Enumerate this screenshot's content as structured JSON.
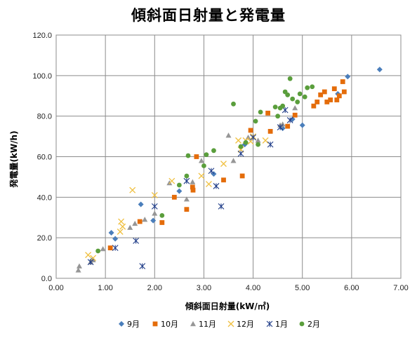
{
  "chart_data": {
    "type": "scatter",
    "title": "傾斜面日射量と発電量",
    "xlabel": "傾斜面日射量(kW/㎡)",
    "ylabel": "発電量(kW/h)",
    "xlim": [
      0,
      7
    ],
    "ylim": [
      0,
      120
    ],
    "xticks": [
      "0.00",
      "1.00",
      "2.00",
      "3.00",
      "4.00",
      "5.00",
      "6.00",
      "7.00"
    ],
    "yticks": [
      "0.0",
      "20.0",
      "40.0",
      "60.0",
      "80.0",
      "100.0",
      "120.0"
    ],
    "grid": true,
    "legend_position": "bottom",
    "series": [
      {
        "name": "9月",
        "marker": "diamond",
        "color": "#4a7ebb",
        "points": [
          [
            0.73,
            9
          ],
          [
            1.12,
            22.5
          ],
          [
            1.2,
            19.5
          ],
          [
            1.72,
            36.5
          ],
          [
            1.97,
            28.5
          ],
          [
            2.5,
            43
          ],
          [
            3.2,
            51.5
          ],
          [
            3.83,
            66
          ],
          [
            4.6,
            74
          ],
          [
            4.8,
            78.5
          ],
          [
            5.0,
            75.5
          ],
          [
            5.72,
            91
          ],
          [
            5.92,
            99.5
          ],
          [
            6.57,
            103
          ]
        ]
      },
      {
        "name": "10月",
        "marker": "square",
        "color": "#e46c0a",
        "points": [
          [
            1.1,
            15
          ],
          [
            1.7,
            28
          ],
          [
            2.15,
            27.5
          ],
          [
            2.4,
            40
          ],
          [
            2.65,
            34
          ],
          [
            2.77,
            45
          ],
          [
            2.78,
            43.5
          ],
          [
            2.85,
            60
          ],
          [
            3.4,
            48.5
          ],
          [
            3.78,
            50.5
          ],
          [
            3.95,
            73
          ],
          [
            4.3,
            81.5
          ],
          [
            4.35,
            72.5
          ],
          [
            4.7,
            75
          ],
          [
            4.85,
            80.5
          ],
          [
            5.23,
            85
          ],
          [
            5.3,
            87
          ],
          [
            5.37,
            90.5
          ],
          [
            5.45,
            92
          ],
          [
            5.5,
            87
          ],
          [
            5.57,
            88
          ],
          [
            5.65,
            93.5
          ],
          [
            5.7,
            88
          ],
          [
            5.75,
            90
          ],
          [
            5.82,
            97
          ],
          [
            5.85,
            92
          ]
        ]
      },
      {
        "name": "11月",
        "marker": "triangle",
        "color": "#969696",
        "points": [
          [
            0.45,
            4
          ],
          [
            0.47,
            6
          ],
          [
            0.7,
            8
          ],
          [
            0.75,
            9
          ],
          [
            0.95,
            14.5
          ],
          [
            1.5,
            25
          ],
          [
            1.6,
            27
          ],
          [
            1.8,
            29
          ],
          [
            2.0,
            32
          ],
          [
            2.3,
            47
          ],
          [
            2.65,
            39
          ],
          [
            2.77,
            47.5
          ],
          [
            2.95,
            58
          ],
          [
            3.5,
            70.5
          ],
          [
            3.6,
            58
          ],
          [
            3.9,
            69.5
          ],
          [
            4.1,
            68
          ],
          [
            4.55,
            75.5
          ],
          [
            4.6,
            76
          ],
          [
            4.85,
            84
          ]
        ]
      },
      {
        "name": "12月",
        "marker": "x",
        "color": "#f0c040",
        "points": [
          [
            0.65,
            11.5
          ],
          [
            0.75,
            10
          ],
          [
            1.3,
            23
          ],
          [
            1.32,
            28
          ],
          [
            1.35,
            25.5
          ],
          [
            1.55,
            43.5
          ],
          [
            2.0,
            41
          ],
          [
            2.35,
            48
          ],
          [
            2.95,
            50.5
          ],
          [
            3.1,
            46.5
          ],
          [
            3.4,
            56.5
          ],
          [
            3.7,
            68
          ],
          [
            3.75,
            63.5
          ],
          [
            3.85,
            68
          ],
          [
            3.95,
            67.5
          ],
          [
            4.0,
            70
          ],
          [
            4.25,
            68
          ]
        ]
      },
      {
        "name": "1月",
        "marker": "asterisk",
        "color": "#1f3c88",
        "points": [
          [
            0.7,
            8
          ],
          [
            1.2,
            15
          ],
          [
            1.62,
            18.5
          ],
          [
            1.75,
            6
          ],
          [
            2.0,
            35.5
          ],
          [
            2.65,
            48
          ],
          [
            3.15,
            53
          ],
          [
            3.25,
            45.5
          ],
          [
            3.35,
            35.5
          ],
          [
            3.75,
            61.5
          ],
          [
            4.0,
            69.5
          ],
          [
            4.35,
            66
          ],
          [
            4.55,
            74.5
          ],
          [
            4.65,
            83
          ],
          [
            4.75,
            78
          ]
        ]
      },
      {
        "name": "2月",
        "marker": "circle",
        "color": "#5a9e3c",
        "points": [
          [
            0.85,
            13.5
          ],
          [
            2.15,
            31
          ],
          [
            2.5,
            46
          ],
          [
            2.65,
            50.5
          ],
          [
            2.68,
            60.5
          ],
          [
            3.0,
            55.5
          ],
          [
            3.05,
            61
          ],
          [
            3.2,
            63
          ],
          [
            3.6,
            86
          ],
          [
            3.75,
            65
          ],
          [
            3.85,
            67
          ],
          [
            4.05,
            77.5
          ],
          [
            4.1,
            66
          ],
          [
            4.15,
            82
          ],
          [
            4.45,
            84.5
          ],
          [
            4.5,
            80
          ],
          [
            4.55,
            84
          ],
          [
            4.6,
            85
          ],
          [
            4.65,
            92
          ],
          [
            4.7,
            90.5
          ],
          [
            4.75,
            98.5
          ],
          [
            4.8,
            88.5
          ],
          [
            4.9,
            87
          ],
          [
            4.95,
            91
          ],
          [
            5.05,
            89.5
          ],
          [
            5.1,
            94
          ],
          [
            5.2,
            94.5
          ]
        ]
      }
    ]
  }
}
